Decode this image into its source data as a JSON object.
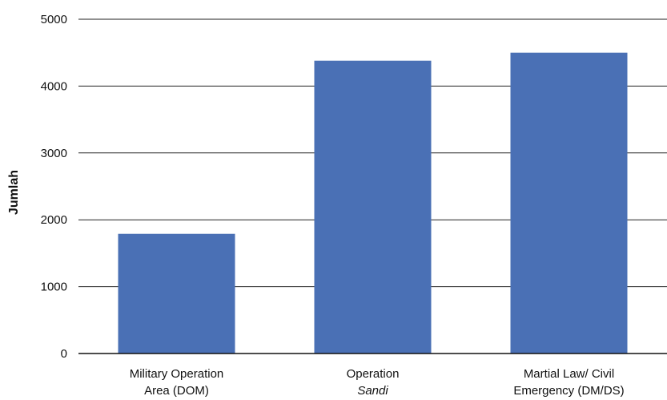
{
  "chart_data": {
    "type": "bar",
    "categories": [
      [
        "Military Operation",
        "Area (DOM)"
      ],
      [
        "Operation",
        "Sandi"
      ],
      [
        "Martial Law/ Civil",
        "Emergency (DM/DS)"
      ]
    ],
    "italic_lines": [
      [],
      [
        1
      ],
      []
    ],
    "values": [
      1790,
      4380,
      4500
    ],
    "title": "",
    "xlabel": "",
    "ylabel": "Jumlah",
    "ylim": [
      0,
      5000
    ],
    "yticks": [
      0,
      1000,
      2000,
      3000,
      4000,
      5000
    ],
    "grid": true,
    "legend": "none",
    "bar_color": "#4a70b5",
    "grid_color": "#222222",
    "axis_color": "#111111"
  }
}
